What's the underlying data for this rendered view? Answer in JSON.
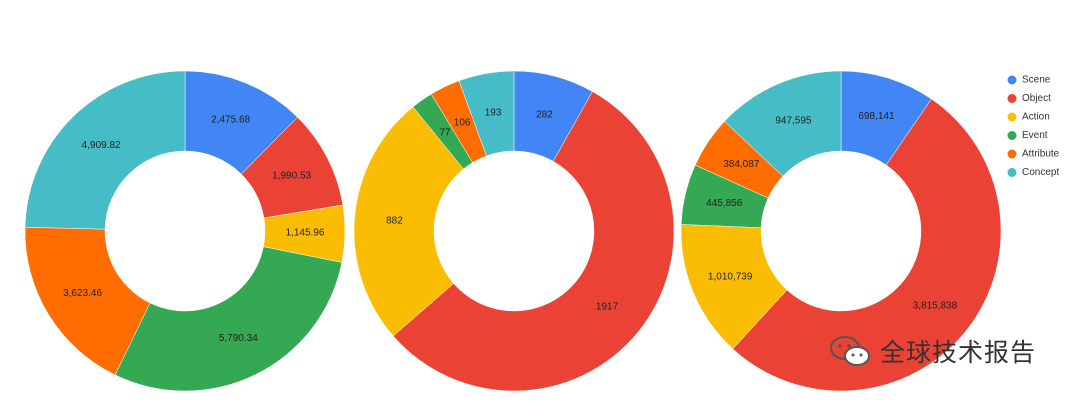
{
  "chart_data": [
    {
      "type": "pie",
      "donut": true,
      "categories": [
        "Scene",
        "Object",
        "Action",
        "Event",
        "Attribute",
        "Concept"
      ],
      "values": [
        2475.68,
        1990.53,
        1145.96,
        5790.34,
        3623.46,
        4909.82
      ],
      "labels": [
        "2,475.68",
        "1,990.53",
        "1,145.96",
        "5,790.34",
        "3,623.46",
        "4,909.82"
      ]
    },
    {
      "type": "pie",
      "donut": true,
      "categories": [
        "Scene",
        "Object",
        "Action",
        "Event",
        "Attribute",
        "Concept"
      ],
      "values": [
        282,
        1917,
        882,
        77,
        106,
        193
      ],
      "labels": [
        "282",
        "1917",
        "882",
        "77",
        "106",
        "193"
      ]
    },
    {
      "type": "pie",
      "donut": true,
      "categories": [
        "Scene",
        "Object",
        "Action",
        "Event",
        "Attribute",
        "Concept"
      ],
      "values": [
        698141,
        3815838,
        1010739,
        445856,
        384087,
        947595
      ],
      "labels": [
        "698,141",
        "3,815,838",
        "1,010,739",
        "445,856",
        "384,087",
        "947,595"
      ]
    }
  ],
  "legend": {
    "placement": "right",
    "items": [
      "Scene",
      "Object",
      "Action",
      "Event",
      "Attribute",
      "Concept"
    ]
  },
  "colors": [
    "#4285F4",
    "#EA4335",
    "#FBBC04",
    "#34A853",
    "#FF6D01",
    "#46BDC6"
  ],
  "watermark": "全球技术报告"
}
